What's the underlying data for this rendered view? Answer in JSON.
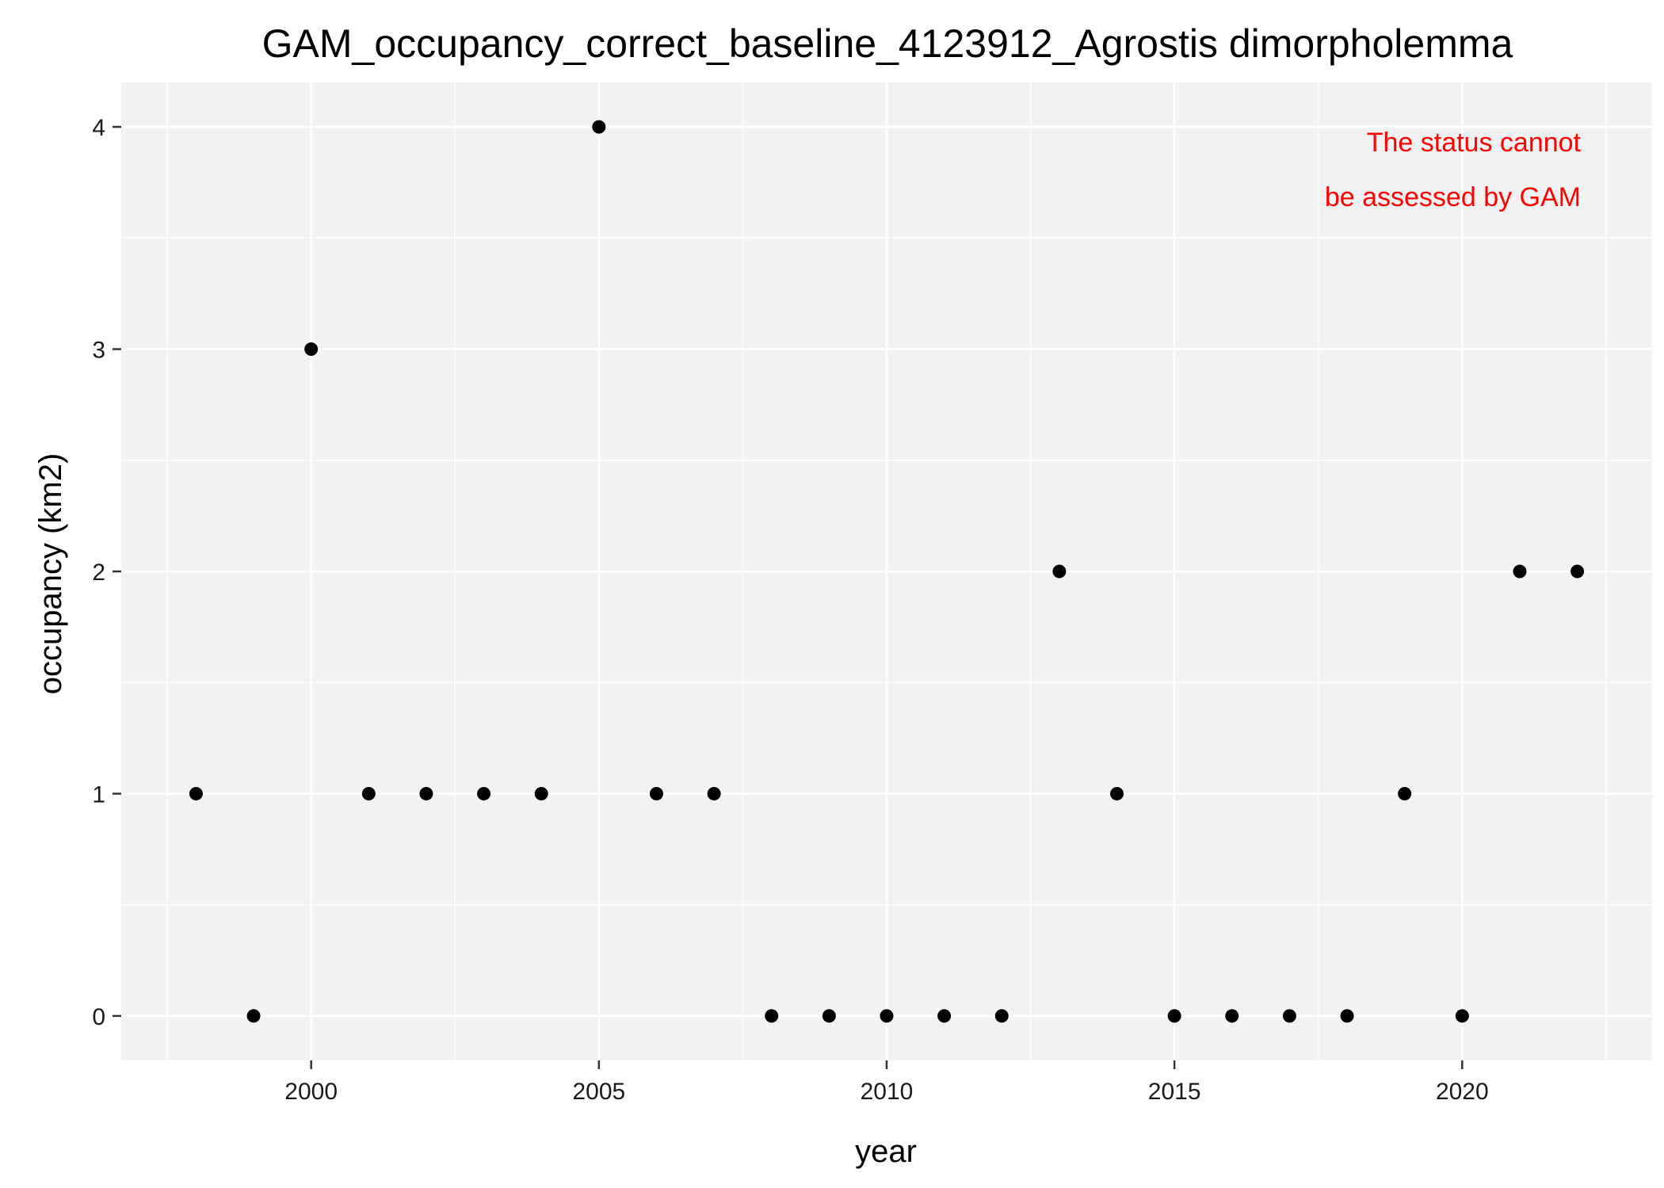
{
  "chart_data": {
    "type": "scatter",
    "title": "GAM_occupancy_correct_baseline_4123912_Agrostis dimorpholemma",
    "xlabel": "year",
    "ylabel": "occupancy (km2)",
    "xlim": [
      1996.7,
      2023.3
    ],
    "ylim": [
      -0.2,
      4.2
    ],
    "x_ticks": [
      2000,
      2005,
      2010,
      2015,
      2020
    ],
    "y_ticks": [
      0,
      1,
      2,
      3,
      4
    ],
    "grid": true,
    "legend": "none",
    "colors": {
      "panel_background": "#f2f2f2",
      "grid": "#ffffff",
      "points": "#000000",
      "annotation": "#ff0000"
    },
    "annotation": [
      "The status cannot",
      "be assessed by GAM"
    ],
    "series": [
      {
        "points": [
          {
            "x": 1998,
            "y": 1
          },
          {
            "x": 1999,
            "y": 0
          },
          {
            "x": 2000,
            "y": 3
          },
          {
            "x": 2001,
            "y": 1
          },
          {
            "x": 2002,
            "y": 1
          },
          {
            "x": 2003,
            "y": 1
          },
          {
            "x": 2004,
            "y": 1
          },
          {
            "x": 2005,
            "y": 4
          },
          {
            "x": 2006,
            "y": 1
          },
          {
            "x": 2007,
            "y": 1
          },
          {
            "x": 2008,
            "y": 0
          },
          {
            "x": 2009,
            "y": 0
          },
          {
            "x": 2010,
            "y": 0
          },
          {
            "x": 2011,
            "y": 0
          },
          {
            "x": 2012,
            "y": 0
          },
          {
            "x": 2013,
            "y": 2
          },
          {
            "x": 2014,
            "y": 1
          },
          {
            "x": 2015,
            "y": 0
          },
          {
            "x": 2016,
            "y": 0
          },
          {
            "x": 2017,
            "y": 0
          },
          {
            "x": 2018,
            "y": 0
          },
          {
            "x": 2019,
            "y": 1
          },
          {
            "x": 2020,
            "y": 0
          },
          {
            "x": 2021,
            "y": 2
          },
          {
            "x": 2022,
            "y": 2
          }
        ]
      }
    ]
  }
}
